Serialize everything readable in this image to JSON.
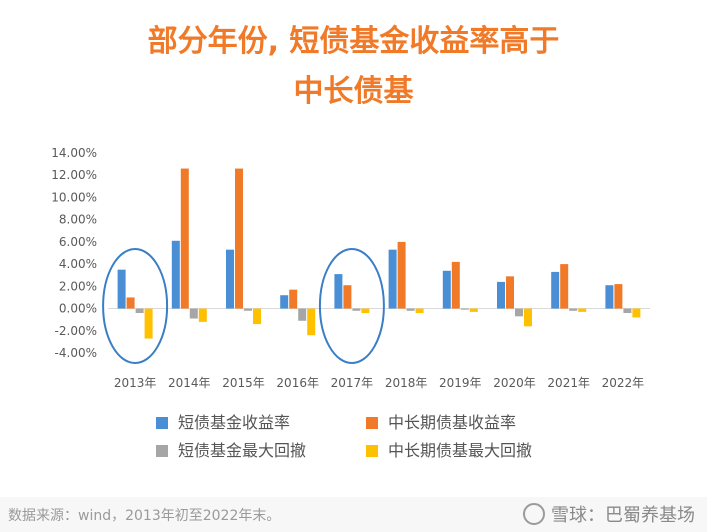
{
  "header": {
    "title_line1": "部分年份, 短债基金收益率高于",
    "title_line2": "中长债基"
  },
  "chart_data": {
    "type": "bar",
    "categories": [
      "2013年",
      "2014年",
      "2015年",
      "2016年",
      "2017年",
      "2018年",
      "2019年",
      "2020年",
      "2021年",
      "2022年"
    ],
    "y_ticks": [
      "14.00%",
      "12.00%",
      "10.00%",
      "8.00%",
      "6.00%",
      "4.00%",
      "2.00%",
      "0.00%",
      "-2.00%",
      "-4.00%"
    ],
    "ylim": [
      -4,
      14
    ],
    "grid": false,
    "legend_position": "bottom",
    "series": [
      {
        "name": "短债基金收益率",
        "color": "#4a8fd6",
        "values": [
          3.5,
          6.1,
          5.3,
          1.2,
          3.1,
          5.3,
          3.4,
          2.4,
          3.3,
          2.1
        ]
      },
      {
        "name": "中长期债基收益率",
        "color": "#f07a28",
        "values": [
          1.0,
          12.6,
          12.6,
          1.7,
          2.1,
          6.0,
          4.2,
          2.9,
          4.0,
          2.2
        ]
      },
      {
        "name": "短债基金最大回撤",
        "color": "#a6a6a6",
        "values": [
          -0.4,
          -0.9,
          -0.2,
          -1.1,
          -0.2,
          -0.2,
          -0.1,
          -0.7,
          -0.2,
          -0.4
        ]
      },
      {
        "name": "中长期债基最大回撤",
        "color": "#ffc000",
        "values": [
          -2.7,
          -1.2,
          -1.4,
          -2.4,
          -0.4,
          -0.4,
          -0.3,
          -1.6,
          -0.3,
          -0.8
        ]
      }
    ],
    "highlighted_categories": [
      "2013年",
      "2017年"
    ]
  },
  "footer": {
    "source": "数据来源：wind，2013年初至2022年末。",
    "watermark": "雪球：巴蜀养基场"
  }
}
